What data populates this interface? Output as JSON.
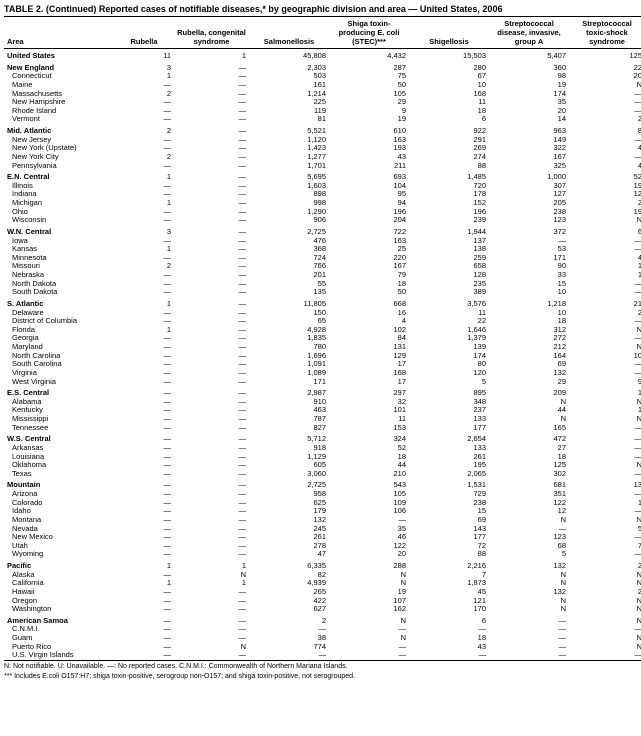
{
  "title": "TABLE 2. (Continued) Reported cases of notifiable diseases,* by geographic division and area — United States, 2006",
  "columns": [
    "Area",
    "Rubella",
    "Rubella, congenital syndrome",
    "Salmonellosis",
    "Shiga toxin-producing E. coli (STEC)***",
    "Shigellosis",
    "Streptococcal disease, invasive, group A",
    "Streptococcal toxic-shock syndrome"
  ],
  "col_align": [
    "left",
    "right",
    "right",
    "right",
    "right",
    "right",
    "right",
    "right"
  ],
  "footnotes": [
    "N: Not notifiable.      U: Unavailable.      —: No reported cases.      C.N.M.I.: Commonwealth of Northern Mariana Islands.",
    "*** Includes E.coli O157:H7; shiga toxin-positive, serogroup non-O157; and shiga toxin-positive, not serogrouped."
  ],
  "rows": [
    {
      "g": true,
      "c": [
        "United States",
        "11",
        "1",
        "45,808",
        "4,432",
        "15,503",
        "5,407",
        "125"
      ]
    },
    {
      "g": true,
      "c": [
        "New England",
        "3",
        "—",
        "2,303",
        "287",
        "280",
        "360",
        "22"
      ]
    },
    {
      "c": [
        "Connecticut",
        "1",
        "—",
        "503",
        "75",
        "67",
        "98",
        "20"
      ]
    },
    {
      "c": [
        "Maine",
        "—",
        "—",
        "161",
        "50",
        "10",
        "19",
        "N"
      ]
    },
    {
      "c": [
        "Massachusetts",
        "2",
        "—",
        "1,214",
        "105",
        "168",
        "174",
        "—"
      ]
    },
    {
      "c": [
        "New Hampshire",
        "—",
        "—",
        "225",
        "29",
        "11",
        "35",
        "—"
      ]
    },
    {
      "c": [
        "Rhode Island",
        "—",
        "—",
        "119",
        "9",
        "18",
        "20",
        "—"
      ]
    },
    {
      "c": [
        "Vermont",
        "—",
        "—",
        "81",
        "19",
        "6",
        "14",
        "2"
      ]
    },
    {
      "g": true,
      "c": [
        "Mid. Atlantic",
        "2",
        "—",
        "5,521",
        "610",
        "922",
        "963",
        "8"
      ]
    },
    {
      "c": [
        "New Jersey",
        "—",
        "—",
        "1,120",
        "163",
        "291",
        "149",
        "—"
      ]
    },
    {
      "c": [
        "New York (Upstate)",
        "—",
        "—",
        "1,423",
        "193",
        "269",
        "322",
        "4"
      ]
    },
    {
      "c": [
        "New York City",
        "2",
        "—",
        "1,277",
        "43",
        "274",
        "167",
        "—"
      ]
    },
    {
      "c": [
        "Pennsylvania",
        "—",
        "—",
        "1,701",
        "211",
        "88",
        "325",
        "4"
      ]
    },
    {
      "g": true,
      "c": [
        "E.N. Central",
        "1",
        "—",
        "5,695",
        "693",
        "1,485",
        "1,000",
        "52"
      ]
    },
    {
      "c": [
        "Illinois",
        "—",
        "—",
        "1,603",
        "104",
        "720",
        "307",
        "19"
      ]
    },
    {
      "c": [
        "Indiana",
        "—",
        "—",
        "898",
        "95",
        "178",
        "127",
        "12"
      ]
    },
    {
      "c": [
        "Michigan",
        "1",
        "—",
        "998",
        "94",
        "152",
        "205",
        "2"
      ]
    },
    {
      "c": [
        "Ohio",
        "—",
        "—",
        "1,290",
        "196",
        "196",
        "238",
        "19"
      ]
    },
    {
      "c": [
        "Wisconsin",
        "—",
        "—",
        "906",
        "204",
        "239",
        "123",
        "N"
      ]
    },
    {
      "g": true,
      "c": [
        "W.N. Central",
        "3",
        "—",
        "2,725",
        "722",
        "1,944",
        "372",
        "6"
      ]
    },
    {
      "c": [
        "Iowa",
        "—",
        "—",
        "476",
        "163",
        "137",
        "—",
        "—"
      ]
    },
    {
      "c": [
        "Kansas",
        "1",
        "—",
        "368",
        "25",
        "138",
        "53",
        "—"
      ]
    },
    {
      "c": [
        "Minnesota",
        "—",
        "—",
        "724",
        "220",
        "259",
        "171",
        "4"
      ]
    },
    {
      "c": [
        "Missouri",
        "2",
        "—",
        "766",
        "167",
        "658",
        "90",
        "1"
      ]
    },
    {
      "c": [
        "Nebraska",
        "—",
        "—",
        "201",
        "79",
        "128",
        "33",
        "1"
      ]
    },
    {
      "c": [
        "North Dakota",
        "—",
        "—",
        "55",
        "18",
        "235",
        "15",
        "—"
      ]
    },
    {
      "c": [
        "South Dakota",
        "—",
        "—",
        "135",
        "50",
        "389",
        "10",
        "—"
      ]
    },
    {
      "g": true,
      "c": [
        "S. Atlantic",
        "1",
        "—",
        "11,805",
        "668",
        "3,576",
        "1,218",
        "21"
      ]
    },
    {
      "c": [
        "Delaware",
        "—",
        "—",
        "150",
        "16",
        "11",
        "10",
        "2"
      ]
    },
    {
      "c": [
        "District of Columbia",
        "—",
        "—",
        "65",
        "4",
        "22",
        "18",
        "—"
      ]
    },
    {
      "c": [
        "Florida",
        "1",
        "—",
        "4,928",
        "102",
        "1,646",
        "312",
        "N"
      ]
    },
    {
      "c": [
        "Georgia",
        "—",
        "—",
        "1,835",
        "84",
        "1,379",
        "272",
        "—"
      ]
    },
    {
      "c": [
        "Maryland",
        "—",
        "—",
        "780",
        "131",
        "139",
        "212",
        "N"
      ]
    },
    {
      "c": [
        "North Carolina",
        "—",
        "—",
        "1,696",
        "129",
        "174",
        "164",
        "10"
      ]
    },
    {
      "c": [
        "South Carolina",
        "—",
        "—",
        "1,091",
        "17",
        "80",
        "69",
        "—"
      ]
    },
    {
      "c": [
        "Virginia",
        "—",
        "—",
        "1,089",
        "168",
        "120",
        "132",
        "—"
      ]
    },
    {
      "c": [
        "West Virginia",
        "—",
        "—",
        "171",
        "17",
        "5",
        "29",
        "9"
      ]
    },
    {
      "g": true,
      "c": [
        "E.S. Central",
        "—",
        "—",
        "2,987",
        "297",
        "895",
        "209",
        "1"
      ]
    },
    {
      "c": [
        "Alabama",
        "—",
        "—",
        "910",
        "32",
        "348",
        "N",
        "N"
      ]
    },
    {
      "c": [
        "Kentucky",
        "—",
        "—",
        "463",
        "101",
        "237",
        "44",
        "1"
      ]
    },
    {
      "c": [
        "Mississippi",
        "—",
        "—",
        "787",
        "11",
        "133",
        "N",
        "N"
      ]
    },
    {
      "c": [
        "Tennessee",
        "—",
        "—",
        "827",
        "153",
        "177",
        "165",
        "—"
      ]
    },
    {
      "g": true,
      "c": [
        "W.S. Central",
        "—",
        "—",
        "5,712",
        "324",
        "2,654",
        "472",
        "—"
      ]
    },
    {
      "c": [
        "Arkansas",
        "—",
        "—",
        "918",
        "52",
        "133",
        "27",
        "—"
      ]
    },
    {
      "c": [
        "Louisiana",
        "—",
        "—",
        "1,129",
        "18",
        "261",
        "18",
        "—"
      ]
    },
    {
      "c": [
        "Oklahoma",
        "—",
        "—",
        "605",
        "44",
        "195",
        "125",
        "N"
      ]
    },
    {
      "c": [
        "Texas",
        "—",
        "—",
        "3,060",
        "210",
        "2,065",
        "302",
        "—"
      ]
    },
    {
      "g": true,
      "c": [
        "Mountain",
        "—",
        "—",
        "2,725",
        "543",
        "1,531",
        "681",
        "13"
      ]
    },
    {
      "c": [
        "Arizona",
        "—",
        "—",
        "958",
        "105",
        "729",
        "351",
        "—"
      ]
    },
    {
      "c": [
        "Colorado",
        "—",
        "—",
        "625",
        "109",
        "238",
        "122",
        "1"
      ]
    },
    {
      "c": [
        "Idaho",
        "—",
        "—",
        "179",
        "106",
        "15",
        "12",
        "—"
      ]
    },
    {
      "c": [
        "Montana",
        "—",
        "—",
        "132",
        "—",
        "69",
        "N",
        "N"
      ]
    },
    {
      "c": [
        "Nevada",
        "—",
        "—",
        "245",
        "35",
        "143",
        "—",
        "5"
      ]
    },
    {
      "c": [
        "New Mexico",
        "—",
        "—",
        "261",
        "46",
        "177",
        "123",
        "—"
      ]
    },
    {
      "c": [
        "Utah",
        "—",
        "—",
        "278",
        "122",
        "72",
        "68",
        "7"
      ]
    },
    {
      "c": [
        "Wyoming",
        "—",
        "—",
        "47",
        "20",
        "88",
        "5",
        "—"
      ]
    },
    {
      "g": true,
      "c": [
        "Pacific",
        "1",
        "1",
        "6,335",
        "288",
        "2,216",
        "132",
        "2"
      ]
    },
    {
      "c": [
        "Alaska",
        "—",
        "N",
        "82",
        "N",
        "7",
        "N",
        "N"
      ]
    },
    {
      "c": [
        "California",
        "1",
        "1",
        "4,939",
        "N",
        "1,873",
        "N",
        "N"
      ]
    },
    {
      "c": [
        "Hawaii",
        "—",
        "—",
        "265",
        "19",
        "45",
        "132",
        "2"
      ]
    },
    {
      "c": [
        "Oregon",
        "—",
        "—",
        "422",
        "107",
        "121",
        "N",
        "N"
      ]
    },
    {
      "c": [
        "Washington",
        "—",
        "—",
        "627",
        "162",
        "170",
        "N",
        "N"
      ]
    },
    {
      "g": true,
      "c": [
        "American Samoa",
        "—",
        "—",
        "2",
        "N",
        "6",
        "—",
        "N"
      ]
    },
    {
      "c": [
        "C.N.M.I.",
        "—",
        "—",
        "—",
        "—",
        "—",
        "—",
        "—"
      ]
    },
    {
      "c": [
        "Guam",
        "—",
        "—",
        "38",
        "N",
        "18",
        "—",
        "N"
      ]
    },
    {
      "c": [
        "Puerto Rico",
        "—",
        "N",
        "774",
        "—",
        "43",
        "—",
        "N"
      ]
    },
    {
      "c": [
        "U.S. Virgin Islands",
        "—",
        "—",
        "—",
        "—",
        "—",
        "—",
        "—"
      ],
      "last": true
    }
  ]
}
